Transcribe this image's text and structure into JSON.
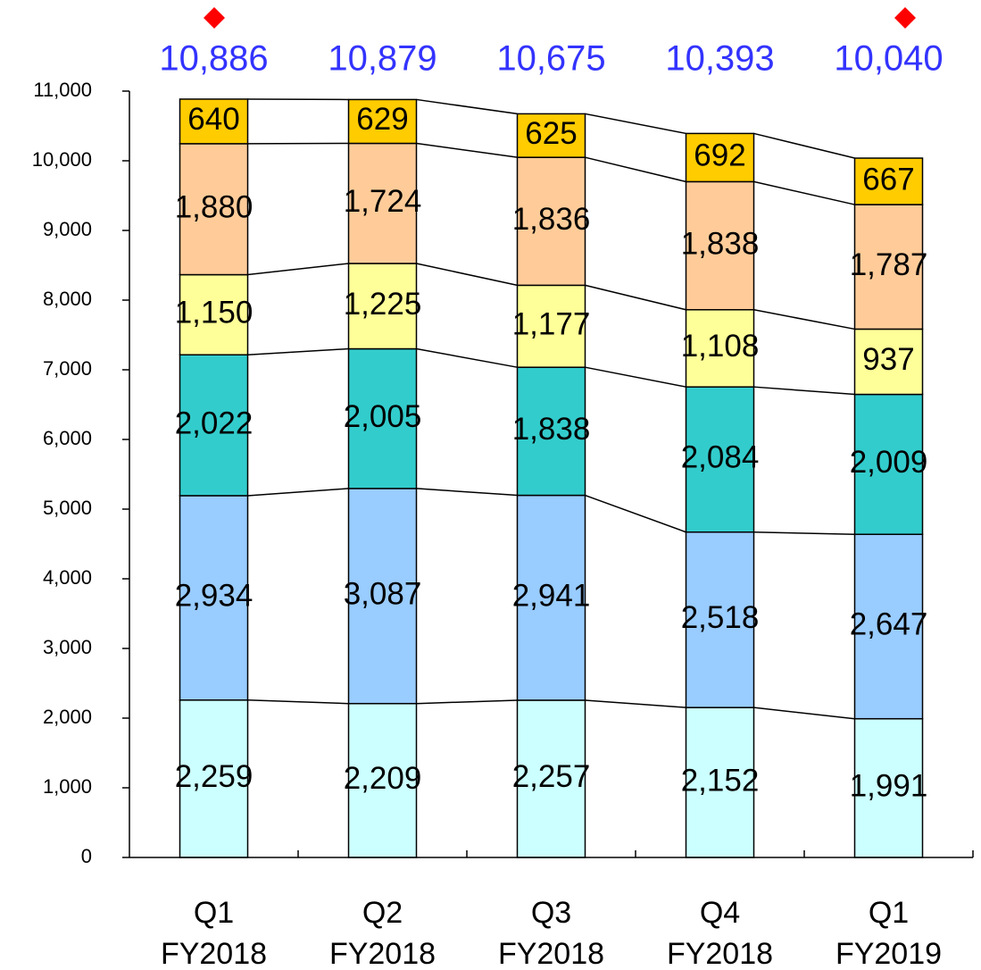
{
  "chart_data": {
    "type": "stacked-bar",
    "categories": [
      [
        "Q1",
        "FY2018"
      ],
      [
        "Q2",
        "FY2018"
      ],
      [
        "Q3",
        "FY2018"
      ],
      [
        "Q4",
        "FY2018"
      ],
      [
        "Q1",
        "FY2019"
      ]
    ],
    "series": [
      {
        "color": "#ccffff",
        "values": [
          2259,
          2209,
          2257,
          2152,
          1991
        ],
        "value_labels": [
          "2,259",
          "2,209",
          "2,257",
          "2,152",
          "1,991"
        ]
      },
      {
        "color": "#99ccff",
        "values": [
          2934,
          3087,
          2941,
          2518,
          2647
        ],
        "value_labels": [
          "2,934",
          "3,087",
          "2,941",
          "2,518",
          "2,647"
        ]
      },
      {
        "color": "#33cccc",
        "values": [
          2022,
          2005,
          1838,
          2084,
          2009
        ],
        "value_labels": [
          "2,022",
          "2,005",
          "1,838",
          "2,084",
          "2,009"
        ]
      },
      {
        "color": "#ffff99",
        "values": [
          1150,
          1225,
          1177,
          1108,
          937
        ],
        "value_labels": [
          "1,150",
          "1,225",
          "1,177",
          "1,108",
          "937"
        ]
      },
      {
        "color": "#ffcc99",
        "values": [
          1880,
          1724,
          1836,
          1838,
          1787
        ],
        "value_labels": [
          "1,880",
          "1,724",
          "1,836",
          "1,838",
          "1,787"
        ]
      },
      {
        "color": "#ffcc00",
        "values": [
          640,
          629,
          625,
          692,
          667
        ],
        "value_labels": [
          "640",
          "629",
          "625",
          "692",
          "667"
        ]
      }
    ],
    "totals": [
      10886,
      10879,
      10675,
      10393,
      10040
    ],
    "totals_labels": [
      "10,886",
      "10,879",
      "10,675",
      "10,393",
      "10,040"
    ],
    "ylim": [
      0,
      11000
    ],
    "yticks": [
      0,
      {
        "value": 1000,
        "label": "1,000"
      },
      {
        "value": 2000,
        "label": "2,000"
      },
      {
        "value": 3000,
        "label": "3,000"
      },
      {
        "value": 4000,
        "label": "4,000"
      },
      {
        "value": 5000,
        "label": "5,000"
      },
      {
        "value": 6000,
        "label": "6,000"
      },
      {
        "value": 7000,
        "label": "7,000"
      },
      {
        "value": 8000,
        "label": "8,000"
      },
      {
        "value": 9000,
        "label": "9,000"
      },
      {
        "value": 10000,
        "label": "10,000"
      },
      {
        "value": 11000,
        "label": "11,000"
      }
    ]
  }
}
